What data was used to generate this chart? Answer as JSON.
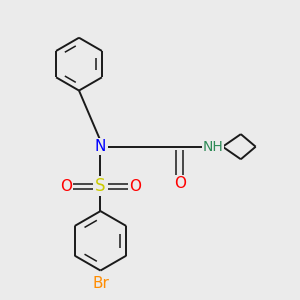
{
  "bg_color": "#ebebeb",
  "bond_color": "#1a1a1a",
  "colors": {
    "N": "#0000ff",
    "O": "#ff0000",
    "S": "#cccc00",
    "Br": "#ff8c00",
    "H": "#2e8b57",
    "C": "#1a1a1a"
  }
}
